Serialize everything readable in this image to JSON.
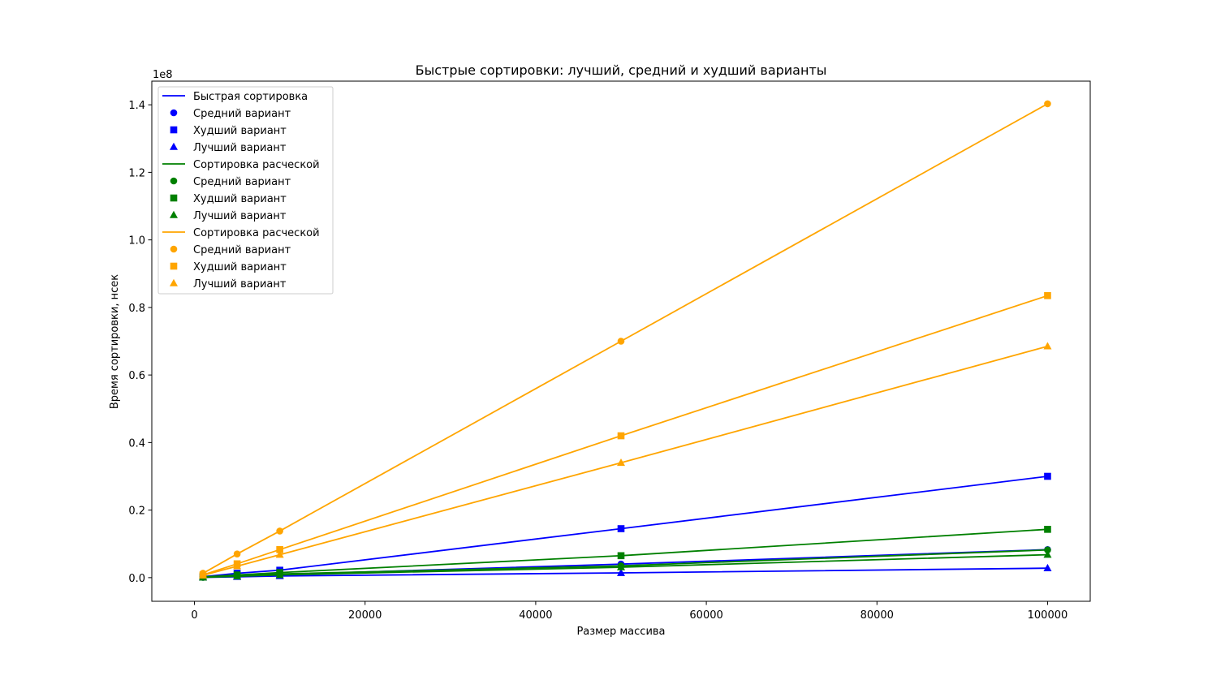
{
  "chart_data": {
    "type": "line",
    "title": "Быстрые сортировки: лучший, средний и худший варианты",
    "xlabel": "Размер массива",
    "ylabel": "Время сортировки, нсек",
    "y_offset_text": "1e8",
    "y_scale": 100000000,
    "xlim": [
      -5000,
      105000
    ],
    "ylim": [
      -7000000,
      147000000
    ],
    "x_ticks": [
      0,
      20000,
      40000,
      60000,
      80000,
      100000
    ],
    "x_tick_labels": [
      "0",
      "20000",
      "40000",
      "60000",
      "80000",
      "100000"
    ],
    "y_ticks": [
      0,
      20000000,
      40000000,
      60000000,
      80000000,
      100000000,
      120000000,
      140000000
    ],
    "y_tick_labels": [
      "0.0",
      "0.2",
      "0.4",
      "0.6",
      "0.8",
      "1.0",
      "1.2",
      "1.4"
    ],
    "grid": false,
    "legend_position": "top-left",
    "x": [
      1000,
      5000,
      10000,
      50000,
      100000
    ],
    "groups": [
      {
        "name": "Быстрая сортировка",
        "color": "#0000ff",
        "series": [
          {
            "name": "Средний вариант",
            "marker": "circle",
            "values": [
              100000,
              500000,
              900000,
              4000000,
              8300000
            ]
          },
          {
            "name": "Худший вариант",
            "marker": "square",
            "values": [
              300000,
              1300000,
              2200000,
              14500000,
              30000000
            ]
          },
          {
            "name": "Лучший вариант",
            "marker": "triangle",
            "values": [
              60000,
              250000,
              500000,
              1400000,
              2800000
            ]
          }
        ]
      },
      {
        "name": "Сортировка расческой",
        "color": "#008000",
        "series": [
          {
            "name": "Средний вариант",
            "marker": "circle",
            "values": [
              100000,
              600000,
              1100000,
              3500000,
              8200000
            ]
          },
          {
            "name": "Худший вариант",
            "marker": "square",
            "values": [
              200000,
              800000,
              1500000,
              6500000,
              14300000
            ]
          },
          {
            "name": "Лучший вариант",
            "marker": "triangle",
            "values": [
              80000,
              400000,
              800000,
              3100000,
              6800000
            ]
          }
        ]
      },
      {
        "name": "Сортировка расческой",
        "color": "#ffa500",
        "series": [
          {
            "name": "Средний вариант",
            "marker": "circle",
            "values": [
              1300000,
              7000000,
              13800000,
              70000000,
              140300000
            ]
          },
          {
            "name": "Худший вариант",
            "marker": "square",
            "values": [
              800000,
              4100000,
              8300000,
              42000000,
              83500000
            ]
          },
          {
            "name": "Лучший вариант",
            "marker": "triangle",
            "values": [
              700000,
              3400000,
              6800000,
              34000000,
              68500000
            ]
          }
        ]
      }
    ]
  }
}
